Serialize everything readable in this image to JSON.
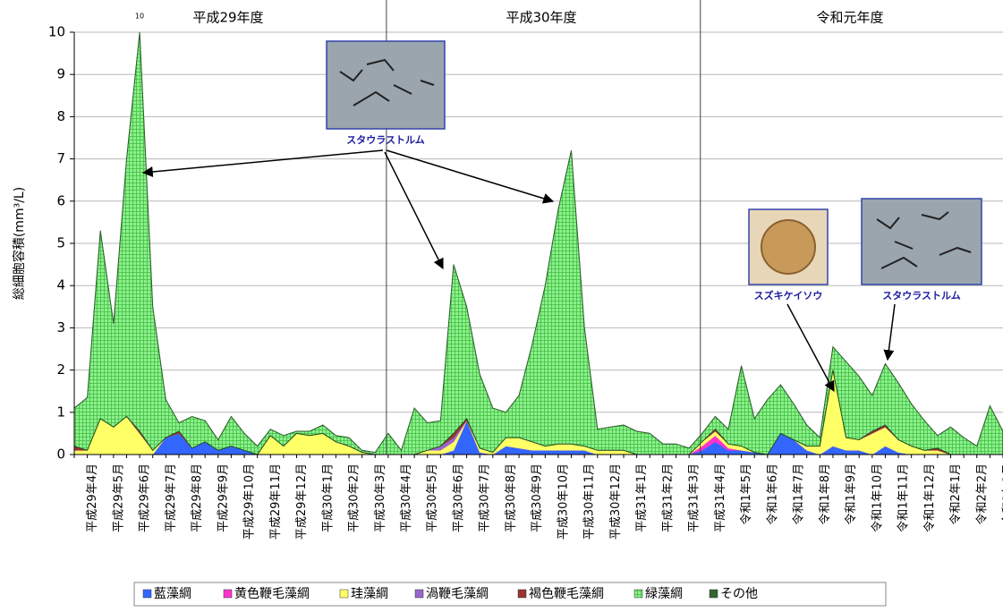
{
  "chart_data": {
    "type": "stacked-area",
    "y_label": "総細胞容積(mm³/L)",
    "period_labels": [
      "平成29年度",
      "平成30年度",
      "令和元年度"
    ],
    "peak_label": "10",
    "annotations": [
      "スタウラストルム",
      "スズキケイソウ",
      "スタウラストルム"
    ],
    "categories": [
      null,
      "平成29年4月",
      null,
      "平成29年5月",
      null,
      "平成29年6月",
      null,
      "平成29年7月",
      null,
      "平成29年8月",
      null,
      "平成29年9月",
      null,
      "平成29年10月",
      null,
      "平成29年11月",
      null,
      "平成29年12月",
      null,
      "平成30年1月",
      null,
      "平成30年2月",
      null,
      "平成30年3月",
      null,
      "平成30年4月",
      null,
      "平成30年5月",
      null,
      "平成30年6月",
      null,
      "平成30年7月",
      null,
      "平成30年8月",
      null,
      "平成30年9月",
      null,
      "平成30年10月",
      null,
      "平成30年11月",
      null,
      "平成30年12月",
      null,
      "平成31年1月",
      null,
      "平成31年2月",
      null,
      "平成31年3月",
      null,
      "平成31年4月",
      null,
      "令和1年5月",
      null,
      "令和1年6月",
      null,
      "令和1年7月",
      null,
      "令和1年8月",
      null,
      "令和1年9月",
      null,
      "令和1年10月",
      null,
      "令和1年11月",
      null,
      "令和1年12月",
      null,
      "令和2年1月",
      null,
      "令和2年2月",
      null,
      "令和2年3月"
    ],
    "series": [
      {
        "name": "藍藻綱",
        "color": "#3366ff",
        "values": [
          0,
          0,
          0,
          0,
          0,
          0,
          0,
          0.4,
          0.5,
          0.15,
          0.3,
          0.1,
          0.2,
          0.1,
          0,
          0,
          0,
          0,
          0,
          0,
          0,
          0,
          0,
          0,
          0,
          0,
          0,
          0,
          0,
          0.1,
          0.8,
          0.05,
          0,
          0.2,
          0.15,
          0.1,
          0.1,
          0.1,
          0.1,
          0.1,
          0,
          0,
          0,
          0,
          0,
          0,
          0,
          0,
          0.1,
          0.3,
          0.1,
          0.1,
          0.05,
          0,
          0.5,
          0.35,
          0.1,
          0,
          0.2,
          0.1,
          0.1,
          0,
          0.2,
          0.05,
          0,
          0,
          0,
          0,
          0,
          0,
          0,
          0
        ]
      },
      {
        "name": "黄色鞭毛藻綱",
        "color": "#ff33cc",
        "values": [
          0,
          0,
          0,
          0,
          0,
          0,
          0,
          0,
          0,
          0,
          0,
          0,
          0,
          0,
          0,
          0,
          0,
          0,
          0,
          0,
          0,
          0,
          0,
          0,
          0,
          0,
          0,
          0,
          0,
          0,
          0,
          0,
          0,
          0,
          0,
          0,
          0,
          0,
          0,
          0,
          0,
          0,
          0,
          0,
          0,
          0,
          0,
          0,
          0.1,
          0.15,
          0.05,
          0,
          0,
          0,
          0,
          0,
          0,
          0,
          0,
          0,
          0,
          0,
          0,
          0,
          0,
          0,
          0,
          0,
          0,
          0,
          0,
          0
        ]
      },
      {
        "name": "珪藻綱",
        "color": "#ffff66",
        "values": [
          0.1,
          0.1,
          0.85,
          0.65,
          0.9,
          0.5,
          0.1,
          0,
          0,
          0,
          0,
          0,
          0,
          0,
          0,
          0.45,
          0.2,
          0.5,
          0.45,
          0.5,
          0.3,
          0.2,
          0.05,
          0,
          0,
          0,
          0,
          0.1,
          0.1,
          0.2,
          0,
          0.1,
          0.05,
          0.2,
          0.25,
          0.2,
          0.1,
          0.15,
          0.15,
          0.1,
          0.1,
          0.1,
          0.1,
          0,
          0,
          0,
          0,
          0,
          0.1,
          0.1,
          0.1,
          0.1,
          0,
          0,
          0,
          0,
          0.1,
          0.2,
          1.8,
          0.3,
          0.25,
          0.5,
          0.45,
          0.3,
          0.2,
          0.1,
          0.1,
          0,
          0,
          0,
          0,
          0
        ]
      },
      {
        "name": "渦鞭毛藻綱",
        "color": "#9966cc",
        "values": [
          0,
          0,
          0,
          0,
          0,
          0,
          0,
          0,
          0,
          0,
          0,
          0,
          0,
          0,
          0,
          0,
          0,
          0,
          0,
          0,
          0,
          0,
          0,
          0,
          0,
          0,
          0,
          0,
          0.1,
          0.1,
          0,
          0,
          0,
          0,
          0,
          0,
          0,
          0,
          0,
          0,
          0,
          0,
          0,
          0,
          0,
          0,
          0,
          0,
          0,
          0,
          0,
          0,
          0,
          0,
          0,
          0,
          0,
          0,
          0,
          0,
          0,
          0,
          0,
          0,
          0,
          0,
          0,
          0,
          0,
          0,
          0,
          0
        ]
      },
      {
        "name": "褐色鞭毛藻綱",
        "color": "#993333",
        "values": [
          0.1,
          0,
          0,
          0,
          0,
          0.05,
          0,
          0,
          0.05,
          0,
          0,
          0,
          0,
          0,
          0,
          0,
          0,
          0,
          0,
          0,
          0,
          0,
          0,
          0,
          0,
          0,
          0,
          0,
          0,
          0.1,
          0.05,
          0,
          0,
          0,
          0,
          0,
          0,
          0,
          0,
          0,
          0,
          0,
          0,
          0,
          0,
          0,
          0,
          0,
          0,
          0.05,
          0,
          0,
          0,
          0,
          0,
          0,
          0,
          0,
          0,
          0,
          0,
          0.05,
          0.05,
          0,
          0,
          0,
          0.05,
          0,
          0,
          0,
          0,
          0
        ]
      },
      {
        "name": "緑藻綱",
        "color": "#66ee66",
        "values": [
          0.9,
          1.25,
          4.45,
          2.45,
          6.1,
          9.45,
          3.4,
          0.9,
          0.2,
          0.75,
          0.5,
          0.25,
          0.7,
          0.4,
          0.2,
          0.15,
          0.25,
          0.05,
          0.1,
          0.2,
          0.15,
          0.2,
          0.05,
          0.05,
          0.5,
          0.1,
          1.1,
          0.65,
          0.6,
          4.0,
          2.65,
          1.75,
          1.05,
          0.6,
          1.0,
          2.3,
          3.8,
          5.55,
          6.95,
          2.8,
          0.5,
          0.55,
          0.6,
          0.55,
          0.5,
          0.25,
          0.25,
          0.15,
          0.2,
          0.3,
          0.35,
          1.9,
          0.8,
          1.3,
          1.15,
          0.85,
          0.5,
          0.2,
          0.55,
          1.8,
          1.5,
          0.85,
          1.45,
          1.35,
          1.0,
          0.7,
          0.3,
          0.65,
          0.4,
          0.2,
          1.15,
          0.55
        ]
      },
      {
        "name": "その他",
        "color": "#336633",
        "values": [
          0,
          0,
          0,
          0,
          0,
          0,
          0,
          0,
          0,
          0,
          0,
          0,
          0,
          0,
          0,
          0,
          0,
          0,
          0,
          0,
          0,
          0,
          0,
          0,
          0,
          0,
          0,
          0,
          0,
          0,
          0,
          0,
          0,
          0,
          0,
          0,
          0,
          0,
          0,
          0,
          0,
          0,
          0,
          0,
          0,
          0,
          0,
          0,
          0,
          0,
          0,
          0,
          0,
          0,
          0,
          0,
          0,
          0,
          0,
          0,
          0,
          0,
          0,
          0,
          0,
          0,
          0,
          0,
          0,
          0,
          0,
          0
        ]
      }
    ],
    "ylim": [
      0,
      10
    ],
    "yticks": [
      0,
      1,
      2,
      3,
      4,
      5,
      6,
      7,
      8,
      9,
      10
    ],
    "grid": true
  }
}
